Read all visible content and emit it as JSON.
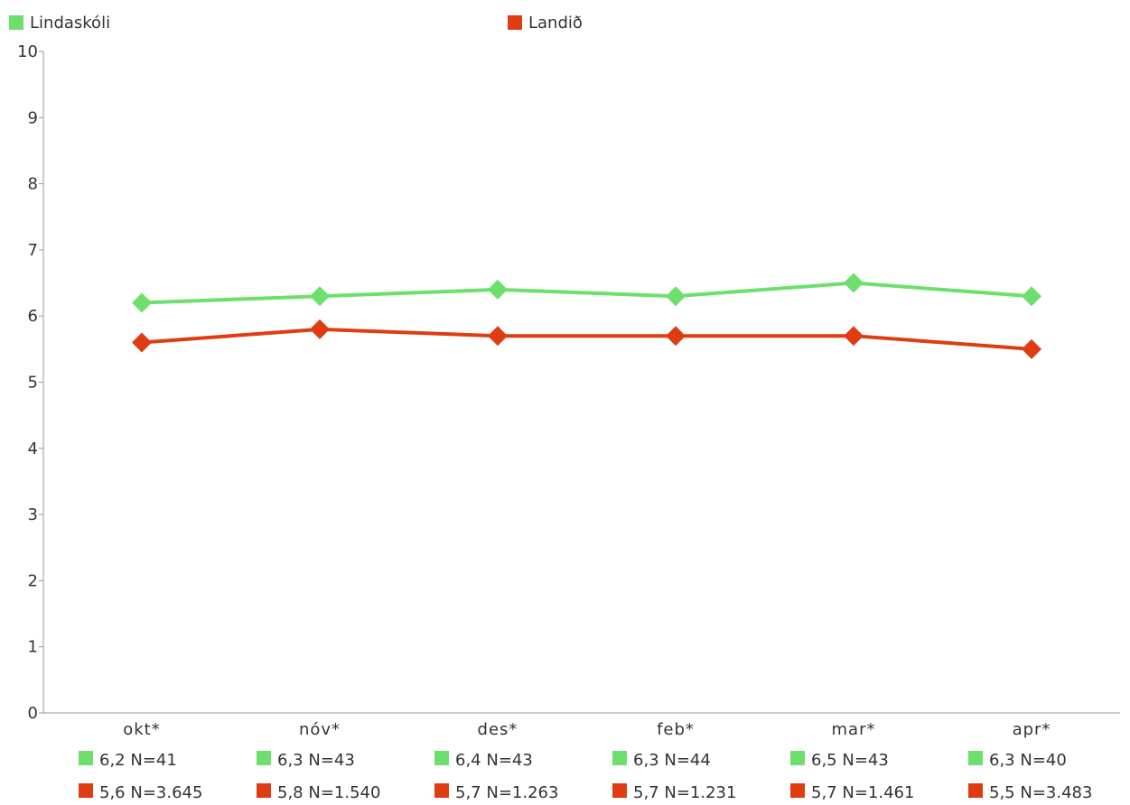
{
  "chart_data": {
    "type": "line",
    "categories": [
      "okt*",
      "nóv*",
      "des*",
      "feb*",
      "mar*",
      "apr*"
    ],
    "ylim": [
      0,
      10
    ],
    "yticks": [
      "0",
      "1",
      "2",
      "3",
      "4",
      "5",
      "6",
      "7",
      "8",
      "9",
      "10"
    ],
    "grid": false,
    "legend_position": "top",
    "series": [
      {
        "name": "Lindaskóli",
        "color": "#6ddf6d",
        "values": [
          6.2,
          6.3,
          6.4,
          6.3,
          6.5,
          6.3
        ],
        "labels": [
          "6,2 N=41",
          "6,3 N=43",
          "6,4 N=43",
          "6,3 N=44",
          "6,5 N=43",
          "6,3 N=40"
        ]
      },
      {
        "name": "Landið",
        "color": "#e03c12",
        "values": [
          5.6,
          5.8,
          5.7,
          5.7,
          5.7,
          5.5
        ],
        "labels": [
          "5,6 N=3.645",
          "5,8 N=1.540",
          "5,7 N=1.263",
          "5,7 N=1.231",
          "5,7 N=1.461",
          "5,5 N=3.483"
        ]
      }
    ]
  }
}
